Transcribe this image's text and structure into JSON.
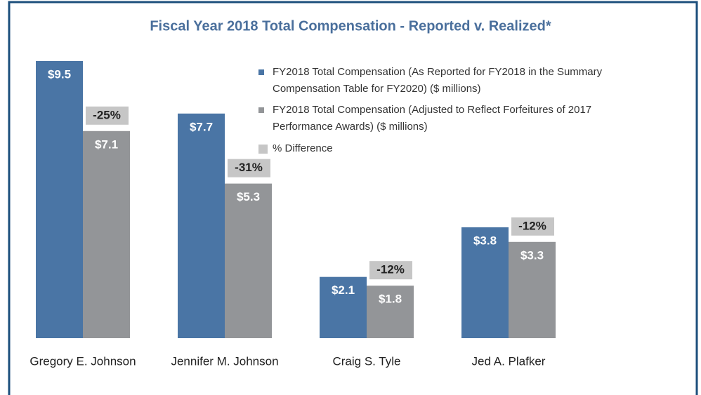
{
  "chart_data": {
    "type": "bar",
    "title": "Fiscal Year 2018 Total Compensation - Reported v. Realized*",
    "categories": [
      "Gregory E. Johnson",
      "Jennifer M. Johnson",
      "Craig S. Tyle",
      "Jed A. Plafker"
    ],
    "series": [
      {
        "name": "FY2018 Total Compensation (As Reported for FY2018 in the Summary Compensation Table for FY2020) ($ millions)",
        "color": "#4a75a5",
        "values": [
          9.5,
          7.7,
          2.1,
          3.8
        ],
        "value_labels": [
          "$9.5",
          "$7.7",
          "$2.1",
          "$3.8"
        ]
      },
      {
        "name": "FY2018 Total Compensation (Adjusted to Reflect Forfeitures of 2017 Performance Awards) ($ millions)",
        "color": "#939598",
        "values": [
          7.1,
          5.3,
          1.8,
          3.3
        ],
        "value_labels": [
          "$7.1",
          "$5.3",
          "$1.8",
          "$3.3"
        ]
      },
      {
        "name": "% Difference",
        "color": "#c6c6c6",
        "values": [
          -25,
          -31,
          -12,
          -12
        ],
        "value_labels": [
          "-25%",
          "-31%",
          "-12%",
          "-12%"
        ]
      }
    ]
  }
}
